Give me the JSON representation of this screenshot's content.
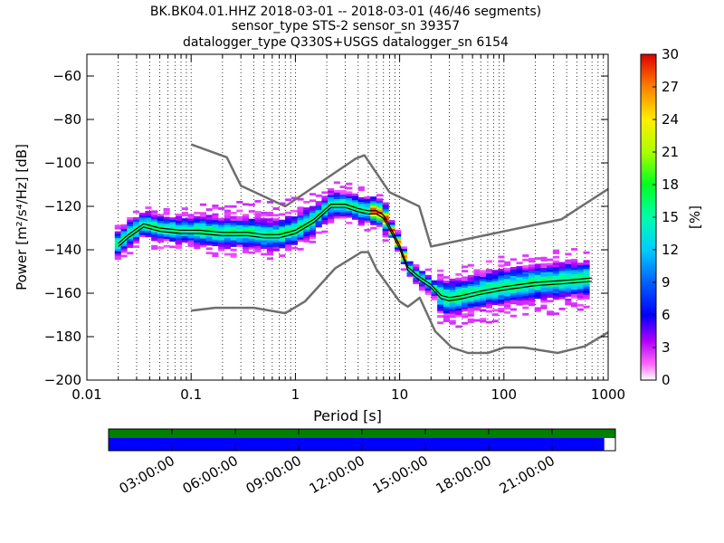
{
  "chart_data": {
    "type": "heatmap",
    "title": "BK.BK04.01.HHZ   2018-03-01 -- 2018-03-01  (46/46 segments)",
    "subtitle1": "sensor_type STS-2 sensor_sn 39357",
    "subtitle2": "datalogger_type Q330S+USGS datalogger_sn 6154",
    "xlabel": "Period [s]",
    "ylabel": "Power [m²/s⁴/Hz] [dB]",
    "xscale": "log",
    "xlim": [
      0.01,
      1000
    ],
    "ylim": [
      -200,
      -50
    ],
    "xticks": [
      0.01,
      0.1,
      1,
      10,
      100,
      1000
    ],
    "xtick_labels": [
      "0.01",
      "0.1",
      "1",
      "10",
      "100",
      "1000"
    ],
    "yticks": [
      -200,
      -180,
      -160,
      -140,
      -120,
      -100,
      -80,
      -60
    ],
    "ytick_labels": [
      "−200",
      "−180",
      "−160",
      "−140",
      "−120",
      "−100",
      "−80",
      "−60"
    ],
    "grid": "vertical dotted",
    "colorbar": {
      "label": "[%]",
      "range": [
        0,
        30
      ],
      "ticks": [
        "0",
        "3",
        "6",
        "9",
        "12",
        "15",
        "18",
        "21",
        "24",
        "27",
        "30"
      ]
    },
    "noise_model_high": {
      "x": [
        0.1,
        0.22,
        0.3,
        0.8,
        3.8,
        4.6,
        8,
        15.4,
        20,
        354.8,
        1000
      ],
      "y": [
        -91.5,
        -97.4,
        -110.5,
        -120.0,
        -98.0,
        -96.5,
        -113.5,
        -120.0,
        -138.5,
        -126.0,
        -112.0
      ]
    },
    "noise_model_low": {
      "x": [
        0.1,
        0.17,
        0.4,
        0.8,
        1.24,
        2.4,
        4.3,
        5,
        6,
        10,
        12,
        15.6,
        21.9,
        31.6,
        45,
        70,
        101,
        154,
        328,
        600,
        1000
      ],
      "y": [
        -168.0,
        -166.7,
        -166.7,
        -169.2,
        -163.7,
        -148.6,
        -141.1,
        -141.1,
        -149.0,
        -163.8,
        -166.2,
        -162.1,
        -177.5,
        -185.0,
        -187.5,
        -187.5,
        -185.0,
        -185.0,
        -187.5,
        -184.4,
        -178.0
      ]
    },
    "mode_curve": {
      "x": [
        0.02,
        0.025,
        0.035,
        0.05,
        0.08,
        0.12,
        0.2,
        0.35,
        0.5,
        0.7,
        1.0,
        1.5,
        2.2,
        3.0,
        4.0,
        5.0,
        6.0,
        7.0,
        8.0,
        10.0,
        12.0,
        15.0,
        20.0,
        25.0,
        30.0,
        40.0,
        60.0,
        100.0,
        200.0,
        400.0,
        700.0
      ],
      "y": [
        -137,
        -133,
        -128,
        -130,
        -131,
        -131,
        -132,
        -132,
        -133,
        -133,
        -131,
        -126,
        -119,
        -119,
        -121,
        -122,
        -122,
        -124,
        -129,
        -138,
        -148,
        -152,
        -156,
        -161,
        -162,
        -161,
        -159,
        -157,
        -155,
        -154,
        -153
      ]
    },
    "mean_curve": {
      "x": [
        0.02,
        0.025,
        0.035,
        0.05,
        0.08,
        0.12,
        0.2,
        0.35,
        0.5,
        0.7,
        1.0,
        1.5,
        2.2,
        3.0,
        4.0,
        5.0,
        6.0,
        7.0,
        8.0,
        10.0,
        12.0,
        15.0,
        20.0,
        25.0,
        30.0,
        40.0,
        60.0,
        100.0,
        200.0,
        400.0,
        700.0
      ],
      "y": [
        -138.5,
        -134.5,
        -129.5,
        -131.5,
        -132.5,
        -132.5,
        -133.5,
        -133.5,
        -134.5,
        -134.5,
        -132.5,
        -127.5,
        -120.5,
        -120.5,
        -122.5,
        -123.5,
        -123.5,
        -125.5,
        -130.5,
        -139.5,
        -149.5,
        -153.5,
        -157.5,
        -162.5,
        -163.5,
        -162.5,
        -160.5,
        -158.5,
        -156.5,
        -155.5,
        -154.5
      ]
    },
    "data_coverage_time_ticks": [
      "03:00:00",
      "06:00:00",
      "09:00:00",
      "12:00:00",
      "15:00:00",
      "18:00:00",
      "21:00:00"
    ],
    "coverage": {
      "green_fraction": 1.0,
      "blue_fraction": 0.978
    },
    "colors": {
      "noise_model": "#6e6e6e",
      "mode": "#000000",
      "mean": "#000000",
      "coverage_green": "#008000",
      "coverage_blue": "#0000ff"
    }
  }
}
